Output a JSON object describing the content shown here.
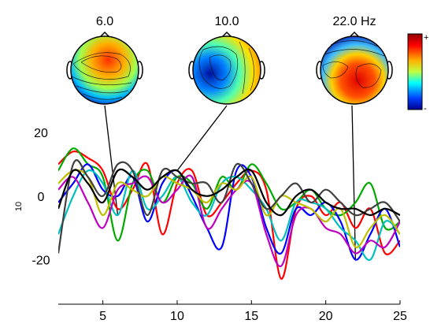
{
  "chart_data": {
    "type": "line",
    "xlim": [
      2,
      25
    ],
    "ylim": [
      -33,
      22
    ],
    "grid": false,
    "legend": "none",
    "ylabel": "10",
    "x_ticks": [
      5,
      10,
      15,
      20,
      25
    ],
    "y_ticks": [
      20,
      0,
      -20
    ],
    "x_tick_labels": [
      "5",
      "10",
      "15",
      "20",
      "25"
    ],
    "y_tick_labels": [
      "20",
      "0",
      "-20"
    ],
    "colorbar": {
      "max_label": "+",
      "min_label": "-"
    },
    "topomaps": [
      {
        "freq": 6,
        "label": "6.0",
        "connector_y": -6
      },
      {
        "freq": 10,
        "label": "10.0",
        "connector_y": 8
      },
      {
        "freq": 22,
        "label": "22.0 Hz",
        "connector_y": -20
      }
    ],
    "x": [
      2,
      3,
      4,
      5,
      6,
      7,
      8,
      9,
      10,
      11,
      12,
      13,
      14,
      15,
      16,
      17,
      18,
      19,
      20,
      21,
      22,
      23,
      24,
      25
    ],
    "series": [
      {
        "color": "#ff0000",
        "values": [
          10,
          14,
          12,
          8,
          -4,
          2,
          10,
          -12,
          4,
          8,
          -6,
          -2,
          4,
          8,
          2,
          -26,
          -4,
          0,
          -6,
          -2,
          -10,
          -4,
          -18,
          -14
        ]
      },
      {
        "color": "#00aa00",
        "values": [
          8,
          15,
          10,
          6,
          -14,
          4,
          8,
          -2,
          6,
          4,
          -4,
          6,
          2,
          10,
          4,
          -4,
          -2,
          2,
          -4,
          -6,
          -2,
          4,
          -10,
          -8
        ]
      },
      {
        "color": "#0000ff",
        "values": [
          -2,
          4,
          10,
          2,
          0,
          6,
          -8,
          4,
          8,
          0,
          -10,
          -16,
          8,
          6,
          -10,
          -18,
          -4,
          -6,
          -2,
          -8,
          -20,
          -12,
          -4,
          -16
        ]
      },
      {
        "color": "#00bfbf",
        "values": [
          -12,
          0,
          8,
          4,
          -6,
          8,
          -4,
          0,
          6,
          -2,
          -6,
          4,
          6,
          2,
          -4,
          -14,
          -2,
          -2,
          -4,
          -10,
          -14,
          -20,
          -8,
          -12
        ]
      },
      {
        "color": "#bf00bf",
        "values": [
          2,
          6,
          -2,
          -10,
          2,
          4,
          6,
          -2,
          2,
          6,
          -10,
          -4,
          2,
          4,
          -12,
          -22,
          -6,
          -4,
          -10,
          -12,
          -18,
          -14,
          -16,
          -8
        ]
      },
      {
        "color": "#bfbf00",
        "values": [
          4,
          8,
          6,
          -6,
          4,
          2,
          0,
          6,
          4,
          2,
          -2,
          4,
          2,
          6,
          -6,
          0,
          -2,
          -4,
          -8,
          -4,
          -16,
          -10,
          -6,
          -12
        ]
      },
      {
        "color": "#404040",
        "values": [
          -18,
          10,
          6,
          0,
          10,
          8,
          -6,
          8,
          6,
          4,
          4,
          -2,
          10,
          4,
          -4,
          0,
          4,
          -2,
          2,
          -2,
          -6,
          -4,
          -2,
          -8
        ]
      },
      {
        "color": "#000000",
        "values": [
          -4,
          8,
          4,
          -2,
          8,
          6,
          2,
          6,
          8,
          2,
          0,
          2,
          6,
          8,
          -2,
          -6,
          0,
          2,
          -2,
          -4,
          -4,
          -6,
          -4,
          -6
        ]
      }
    ]
  }
}
